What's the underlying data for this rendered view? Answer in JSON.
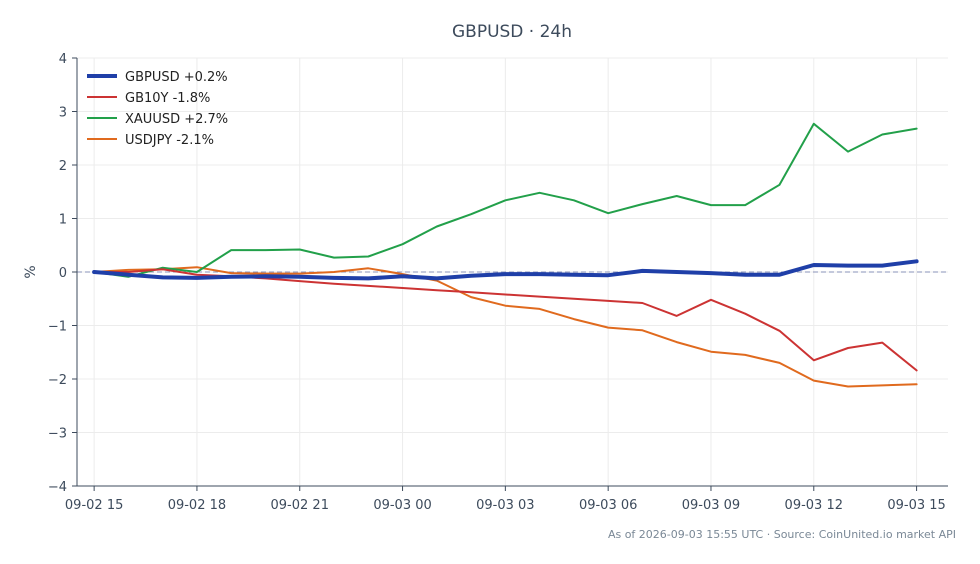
{
  "chart_data": {
    "type": "line",
    "title": "GBPUSD · 24h",
    "xlabel": "",
    "ylabel": "%",
    "ylim": [
      -4,
      4
    ],
    "yticks": [
      4,
      3,
      2,
      1,
      0,
      -1,
      -2,
      -3,
      -4
    ],
    "ytick_labels": [
      "4",
      "3",
      "2",
      "1",
      "0",
      "−1",
      "−2",
      "−3",
      "−4"
    ],
    "xlim": [
      "09-02 14:30",
      "09-03 15:55"
    ],
    "xtick_labels": [
      "09-02 15",
      "09-02 18",
      "09-02 21",
      "09-03 00",
      "09-03 03",
      "09-03 06",
      "09-03 09",
      "09-03 12",
      "09-03 15"
    ],
    "grid": true,
    "zero_line": true,
    "legend_position": "top-left",
    "x": [
      "09-02 15:00",
      "09-02 16:00",
      "09-02 17:00",
      "09-02 18:00",
      "09-02 19:00",
      "09-02 20:00",
      "09-02 21:00",
      "09-02 22:00",
      "09-02 23:00",
      "09-03 00:00",
      "09-03 01:00",
      "09-03 02:00",
      "09-03 03:00",
      "09-03 04:00",
      "09-03 05:00",
      "09-03 06:00",
      "09-03 07:00",
      "09-03 08:00",
      "09-03 09:00",
      "09-03 10:00",
      "09-03 11:00",
      "09-03 12:00",
      "09-03 13:00",
      "09-03 14:00",
      "09-03 15:00"
    ],
    "series": [
      {
        "name": "GBPUSD +0.2%",
        "color": "#1f3fa8",
        "width": 4,
        "values": [
          0.0,
          -0.05,
          -0.1,
          -0.11,
          -0.09,
          -0.08,
          -0.09,
          -0.11,
          -0.12,
          -0.08,
          -0.12,
          -0.07,
          -0.04,
          -0.04,
          -0.05,
          -0.06,
          0.02,
          0.0,
          -0.02,
          -0.05,
          -0.05,
          0.13,
          0.12,
          0.12,
          0.2
        ]
      },
      {
        "name": "GB10Y -1.8%",
        "color": "#cc3333",
        "width": 2,
        "values": [
          0.0,
          0.0,
          0.05,
          -0.05,
          -0.08,
          -0.12,
          -0.17,
          -0.22,
          -0.26,
          -0.3,
          -0.34,
          -0.38,
          -0.42,
          -0.46,
          -0.5,
          -0.54,
          -0.58,
          -0.82,
          -0.52,
          -0.78,
          -1.1,
          -1.65,
          -1.42,
          -1.32,
          -1.84
        ]
      },
      {
        "name": "XAUUSD +2.7%",
        "color": "#22a04a",
        "width": 2,
        "values": [
          0.0,
          -0.09,
          0.08,
          0.0,
          0.41,
          0.41,
          0.42,
          0.27,
          0.29,
          0.52,
          0.85,
          1.08,
          1.34,
          1.48,
          1.34,
          1.1,
          1.27,
          1.42,
          1.25,
          1.25,
          1.63,
          2.77,
          2.25,
          2.57,
          2.68
        ]
      },
      {
        "name": "USDJPY -2.1%",
        "color": "#e06a1e",
        "width": 2,
        "values": [
          0.0,
          0.04,
          0.05,
          0.09,
          -0.02,
          -0.03,
          -0.03,
          0.0,
          0.07,
          -0.04,
          -0.16,
          -0.47,
          -0.63,
          -0.69,
          -0.88,
          -1.04,
          -1.09,
          -1.31,
          -1.49,
          -1.55,
          -1.7,
          -2.03,
          -2.14,
          -2.12,
          -2.1
        ]
      }
    ]
  },
  "footer": "As of 2026-09-03 15:55 UTC · Source: CoinUnited.io market API"
}
